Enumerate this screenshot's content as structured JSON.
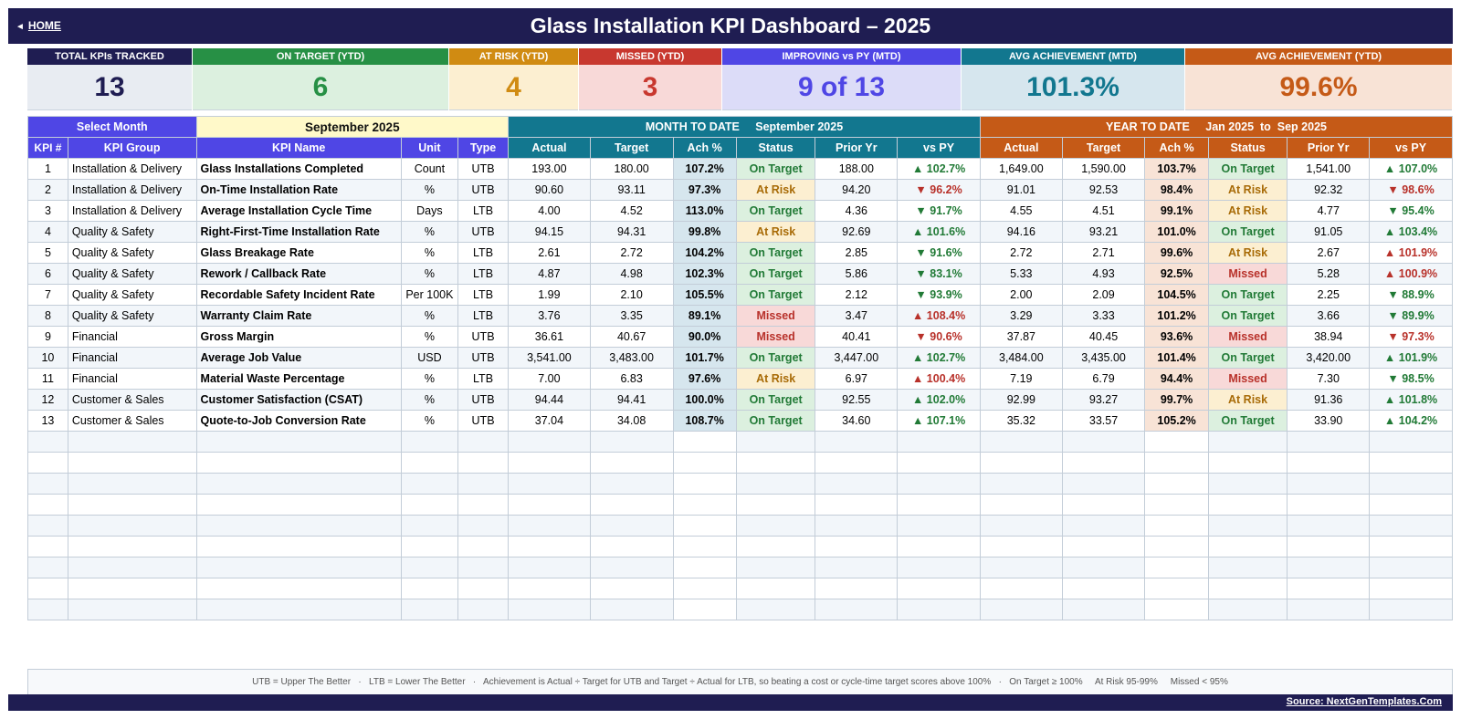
{
  "header": {
    "home_label": "HOME",
    "title": "Glass Installation KPI Dashboard   –   2025"
  },
  "kpis": [
    {
      "label": "TOTAL KPIs TRACKED",
      "value": "13",
      "head_color": "#1f1d52",
      "bg_color": "#e8ecf2",
      "value_color": "#1f1d52"
    },
    {
      "label": "ON TARGET (YTD)",
      "value": "6",
      "head_color": "#279045",
      "bg_color": "#dcf0df",
      "value_color": "#279045"
    },
    {
      "label": "AT RISK (YTD)",
      "value": "4",
      "head_color": "#d08b12",
      "bg_color": "#fcefd1",
      "value_color": "#d08b12"
    },
    {
      "label": "MISSED (YTD)",
      "value": "3",
      "head_color": "#c8382f",
      "bg_color": "#f8d9d8",
      "value_color": "#c8382f"
    },
    {
      "label": "IMPROVING vs PY (MTD)",
      "value": "9 of 13",
      "head_color": "#4f46e5",
      "bg_color": "#dcdcf8",
      "value_color": "#4f46e5"
    },
    {
      "label": "AVG ACHIEVEMENT (MTD)",
      "value": "101.3%",
      "head_color": "#12778f",
      "bg_color": "#d6e6ee",
      "value_color": "#12778f"
    },
    {
      "label": "AVG ACHIEVEMENT (YTD)",
      "value": "99.6%",
      "head_color": "#c55a17",
      "bg_color": "#f8e3d6",
      "value_color": "#c55a17"
    }
  ],
  "selector": {
    "label": "Select Month",
    "value": "September 2025",
    "mtd_title": "MONTH TO DATE     September 2025",
    "ytd_title": "YEAR TO DATE     Jan 2025  to  Sep 2025"
  },
  "columns": {
    "no": "KPI #",
    "group": "KPI Group",
    "name": "KPI Name",
    "unit": "Unit",
    "type": "Type",
    "actual": "Actual",
    "target": "Target",
    "ach": "Ach %",
    "status": "Status",
    "prior": "Prior Yr",
    "vspy": "vs PY"
  },
  "rows": [
    {
      "no": "1",
      "group": "Installation & Delivery",
      "name": "Glass Installations Completed",
      "unit": "Count",
      "type": "UTB",
      "m_actual": "193.00",
      "m_target": "180.00",
      "m_ach": "107.2%",
      "m_status": "On Target",
      "m_prior": "188.00",
      "m_vspy": "▲ 102.7%",
      "y_actual": "1,649.00",
      "y_target": "1,590.00",
      "y_ach": "103.7%",
      "y_status": "On Target",
      "y_prior": "1,541.00",
      "y_vspy": "▲ 107.0%"
    },
    {
      "no": "2",
      "group": "Installation & Delivery",
      "name": "On-Time Installation Rate",
      "unit": "%",
      "type": "UTB",
      "m_actual": "90.60",
      "m_target": "93.11",
      "m_ach": "97.3%",
      "m_status": "At Risk",
      "m_prior": "94.20",
      "m_vspy": "▼ 96.2%",
      "y_actual": "91.01",
      "y_target": "92.53",
      "y_ach": "98.4%",
      "y_status": "At Risk",
      "y_prior": "92.32",
      "y_vspy": "▼ 98.6%"
    },
    {
      "no": "3",
      "group": "Installation & Delivery",
      "name": "Average Installation Cycle Time",
      "unit": "Days",
      "type": "LTB",
      "m_actual": "4.00",
      "m_target": "4.52",
      "m_ach": "113.0%",
      "m_status": "On Target",
      "m_prior": "4.36",
      "m_vspy": "▼ 91.7%",
      "y_actual": "4.55",
      "y_target": "4.51",
      "y_ach": "99.1%",
      "y_status": "At Risk",
      "y_prior": "4.77",
      "y_vspy": "▼ 95.4%"
    },
    {
      "no": "4",
      "group": "Quality & Safety",
      "name": "Right-First-Time Installation Rate",
      "unit": "%",
      "type": "UTB",
      "m_actual": "94.15",
      "m_target": "94.31",
      "m_ach": "99.8%",
      "m_status": "At Risk",
      "m_prior": "92.69",
      "m_vspy": "▲ 101.6%",
      "y_actual": "94.16",
      "y_target": "93.21",
      "y_ach": "101.0%",
      "y_status": "On Target",
      "y_prior": "91.05",
      "y_vspy": "▲ 103.4%"
    },
    {
      "no": "5",
      "group": "Quality & Safety",
      "name": "Glass Breakage Rate",
      "unit": "%",
      "type": "LTB",
      "m_actual": "2.61",
      "m_target": "2.72",
      "m_ach": "104.2%",
      "m_status": "On Target",
      "m_prior": "2.85",
      "m_vspy": "▼ 91.6%",
      "y_actual": "2.72",
      "y_target": "2.71",
      "y_ach": "99.6%",
      "y_status": "At Risk",
      "y_prior": "2.67",
      "y_vspy": "▲ 101.9%"
    },
    {
      "no": "6",
      "group": "Quality & Safety",
      "name": "Rework / Callback Rate",
      "unit": "%",
      "type": "LTB",
      "m_actual": "4.87",
      "m_target": "4.98",
      "m_ach": "102.3%",
      "m_status": "On Target",
      "m_prior": "5.86",
      "m_vspy": "▼ 83.1%",
      "y_actual": "5.33",
      "y_target": "4.93",
      "y_ach": "92.5%",
      "y_status": "Missed",
      "y_prior": "5.28",
      "y_vspy": "▲ 100.9%"
    },
    {
      "no": "7",
      "group": "Quality & Safety",
      "name": "Recordable Safety Incident Rate",
      "unit": "Per 100K",
      "type": "LTB",
      "m_actual": "1.99",
      "m_target": "2.10",
      "m_ach": "105.5%",
      "m_status": "On Target",
      "m_prior": "2.12",
      "m_vspy": "▼ 93.9%",
      "y_actual": "2.00",
      "y_target": "2.09",
      "y_ach": "104.5%",
      "y_status": "On Target",
      "y_prior": "2.25",
      "y_vspy": "▼ 88.9%"
    },
    {
      "no": "8",
      "group": "Quality & Safety",
      "name": "Warranty Claim Rate",
      "unit": "%",
      "type": "LTB",
      "m_actual": "3.76",
      "m_target": "3.35",
      "m_ach": "89.1%",
      "m_status": "Missed",
      "m_prior": "3.47",
      "m_vspy": "▲ 108.4%",
      "y_actual": "3.29",
      "y_target": "3.33",
      "y_ach": "101.2%",
      "y_status": "On Target",
      "y_prior": "3.66",
      "y_vspy": "▼ 89.9%"
    },
    {
      "no": "9",
      "group": "Financial",
      "name": "Gross Margin",
      "unit": "%",
      "type": "UTB",
      "m_actual": "36.61",
      "m_target": "40.67",
      "m_ach": "90.0%",
      "m_status": "Missed",
      "m_prior": "40.41",
      "m_vspy": "▼ 90.6%",
      "y_actual": "37.87",
      "y_target": "40.45",
      "y_ach": "93.6%",
      "y_status": "Missed",
      "y_prior": "38.94",
      "y_vspy": "▼ 97.3%"
    },
    {
      "no": "10",
      "group": "Financial",
      "name": "Average Job Value",
      "unit": "USD",
      "type": "UTB",
      "m_actual": "3,541.00",
      "m_target": "3,483.00",
      "m_ach": "101.7%",
      "m_status": "On Target",
      "m_prior": "3,447.00",
      "m_vspy": "▲ 102.7%",
      "y_actual": "3,484.00",
      "y_target": "3,435.00",
      "y_ach": "101.4%",
      "y_status": "On Target",
      "y_prior": "3,420.00",
      "y_vspy": "▲ 101.9%"
    },
    {
      "no": "11",
      "group": "Financial",
      "name": "Material Waste Percentage",
      "unit": "%",
      "type": "LTB",
      "m_actual": "7.00",
      "m_target": "6.83",
      "m_ach": "97.6%",
      "m_status": "At Risk",
      "m_prior": "6.97",
      "m_vspy": "▲ 100.4%",
      "y_actual": "7.19",
      "y_target": "6.79",
      "y_ach": "94.4%",
      "y_status": "Missed",
      "y_prior": "7.30",
      "y_vspy": "▼ 98.5%"
    },
    {
      "no": "12",
      "group": "Customer & Sales",
      "name": "Customer Satisfaction (CSAT)",
      "unit": "%",
      "type": "UTB",
      "m_actual": "94.44",
      "m_target": "94.41",
      "m_ach": "100.0%",
      "m_status": "On Target",
      "m_prior": "92.55",
      "m_vspy": "▲ 102.0%",
      "y_actual": "92.99",
      "y_target": "93.27",
      "y_ach": "99.7%",
      "y_status": "At Risk",
      "y_prior": "91.36",
      "y_vspy": "▲ 101.8%"
    },
    {
      "no": "13",
      "group": "Customer & Sales",
      "name": "Quote-to-Job Conversion Rate",
      "unit": "%",
      "type": "UTB",
      "m_actual": "37.04",
      "m_target": "34.08",
      "m_ach": "108.7%",
      "m_status": "On Target",
      "m_prior": "34.60",
      "m_vspy": "▲ 107.1%",
      "y_actual": "35.32",
      "y_target": "33.57",
      "y_ach": "105.2%",
      "y_status": "On Target",
      "y_prior": "33.90",
      "y_vspy": "▲ 104.2%"
    }
  ],
  "empty_rows": 9,
  "footer": {
    "note": "UTB = Upper The Better   ·   LTB = Lower The Better   ·   Achievement is Actual ÷ Target for UTB and Target ÷ Actual for LTB, so beating a cost or cycle-time target scores above 100%   ·   On Target ≥ 100%     At Risk 95-99%     Missed < 95%",
    "source": "Source: NextGenTemplates.Com"
  },
  "colors": {
    "navy": "#1f1d52",
    "indigo": "#4f46e5",
    "teal": "#12778f",
    "orange": "#c55a17",
    "selector_bg": "#fff9c9"
  }
}
